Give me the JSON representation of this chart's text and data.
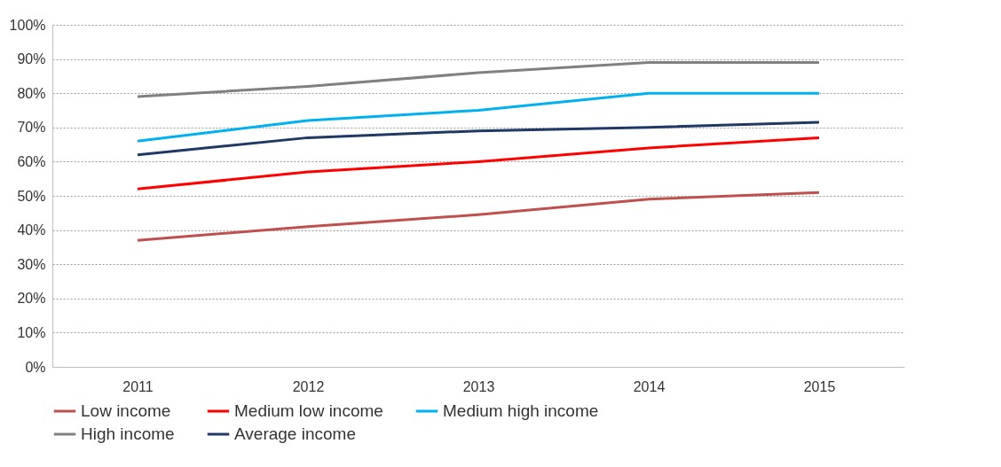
{
  "chart_data": {
    "type": "line",
    "categories": [
      "2011",
      "2012",
      "2013",
      "2014",
      "2015"
    ],
    "series": [
      {
        "name": "Low income",
        "color": "#c0504d",
        "values": [
          37,
          41,
          44.5,
          49,
          51
        ]
      },
      {
        "name": "Medium low income",
        "color": "#ff0000",
        "values": [
          52,
          57,
          60,
          64,
          67
        ]
      },
      {
        "name": "Medium high income",
        "color": "#00b0f0",
        "values": [
          66,
          72,
          75,
          80,
          80
        ]
      },
      {
        "name": "High income",
        "color": "#808080",
        "values": [
          79,
          82,
          86,
          89,
          89
        ]
      },
      {
        "name": "Average income",
        "color": "#1f3864",
        "values": [
          62,
          67,
          69,
          70,
          71.5
        ]
      }
    ],
    "ylim": [
      0,
      100
    ],
    "yticks": [
      {
        "value": 0,
        "label": "0%"
      },
      {
        "value": 10,
        "label": "10%"
      },
      {
        "value": 20,
        "label": "20%"
      },
      {
        "value": 30,
        "label": "30%"
      },
      {
        "value": 40,
        "label": "40%"
      },
      {
        "value": 50,
        "label": "50%"
      },
      {
        "value": 60,
        "label": "60%"
      },
      {
        "value": 70,
        "label": "70%"
      },
      {
        "value": 80,
        "label": "80%"
      },
      {
        "value": 90,
        "label": "90%"
      },
      {
        "value": 100,
        "label": "100%"
      }
    ],
    "grid": "y",
    "legend": "bottom",
    "marker": "none",
    "line_style": "solid"
  }
}
